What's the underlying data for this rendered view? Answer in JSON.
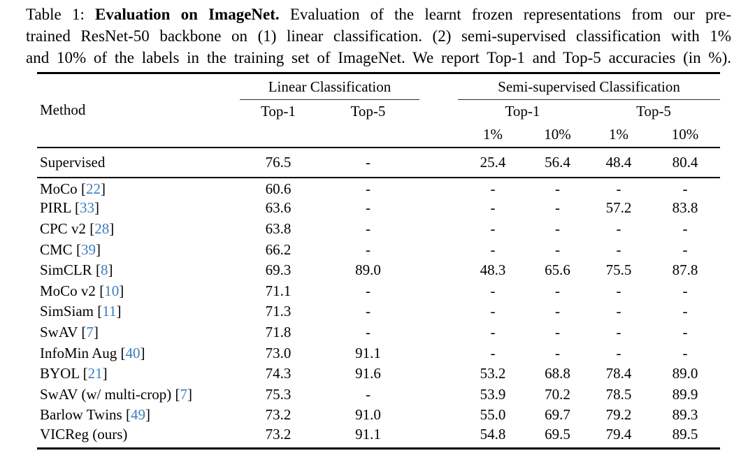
{
  "caption": {
    "line1_pre": "Table 1: ",
    "line1_bold": "Evaluation on ImageNet.",
    "line1_rest": " Evaluation of the learnt frozen representations from our pre-",
    "line2": "trained ResNet-50 backbone on (1) linear classification. (2) semi-supervised classification with 1%",
    "line3": "and 10% of the labels in the training set of ImageNet. We report Top-1 and Top-5 accuracies (in %)."
  },
  "table": {
    "method_header": "Method",
    "groups": [
      {
        "label": "Linear Classification",
        "columns": [
          "Top-1",
          "Top-5"
        ]
      },
      {
        "label": "Semi-supervised Classification",
        "subgroups": [
          {
            "label": "Top-1",
            "columns": [
              "1%",
              "10%"
            ]
          },
          {
            "label": "Top-5",
            "columns": [
              "1%",
              "10%"
            ]
          }
        ]
      }
    ],
    "cite_brackets": [
      "[",
      "]"
    ],
    "cite_color": "#3d7cbe",
    "supervised_row": {
      "method": "Supervised",
      "cite": null,
      "values": [
        "76.5",
        "-",
        "25.4",
        "56.4",
        "48.4",
        "80.4"
      ]
    },
    "rows": [
      {
        "method": "MoCo",
        "cite": "22",
        "values": [
          "60.6",
          "-",
          "-",
          "-",
          "-",
          "-"
        ]
      },
      {
        "method": "PIRL",
        "cite": "33",
        "values": [
          "63.6",
          "-",
          "-",
          "-",
          "57.2",
          "83.8"
        ]
      },
      {
        "method": "CPC v2",
        "cite": "28",
        "values": [
          "63.8",
          "-",
          "-",
          "-",
          "-",
          "-"
        ]
      },
      {
        "method": "CMC",
        "cite": "39",
        "values": [
          "66.2",
          "-",
          "-",
          "-",
          "-",
          "-"
        ]
      },
      {
        "method": "SimCLR",
        "cite": "8",
        "values": [
          "69.3",
          "89.0",
          "48.3",
          "65.6",
          "75.5",
          "87.8"
        ]
      },
      {
        "method": "MoCo v2",
        "cite": "10",
        "values": [
          "71.1",
          "-",
          "-",
          "-",
          "-",
          "-"
        ]
      },
      {
        "method": "SimSiam",
        "cite": "11",
        "values": [
          "71.3",
          "-",
          "-",
          "-",
          "-",
          "-"
        ]
      },
      {
        "method": "SwAV",
        "cite": "7",
        "values": [
          "71.8",
          "-",
          "-",
          "-",
          "-",
          "-"
        ]
      },
      {
        "method": "InfoMin Aug",
        "cite": "40",
        "values": [
          "73.0",
          "91.1",
          "-",
          "-",
          "-",
          "-"
        ]
      },
      {
        "method": "BYOL",
        "cite": "21",
        "values": [
          "74.3",
          "91.6",
          "53.2",
          "68.8",
          "78.4",
          "89.0"
        ]
      },
      {
        "method": "SwAV (w/ multi-crop)",
        "cite": "7",
        "values": [
          "75.3",
          "-",
          "53.9",
          "70.2",
          "78.5",
          "89.9"
        ]
      },
      {
        "method": "Barlow Twins",
        "cite": "49",
        "values": [
          "73.2",
          "91.0",
          "55.0",
          "69.7",
          "79.2",
          "89.3"
        ]
      },
      {
        "method": "VICReg (ours)",
        "cite": null,
        "values": [
          "73.2",
          "91.1",
          "54.8",
          "69.5",
          "79.4",
          "89.5"
        ]
      }
    ]
  }
}
